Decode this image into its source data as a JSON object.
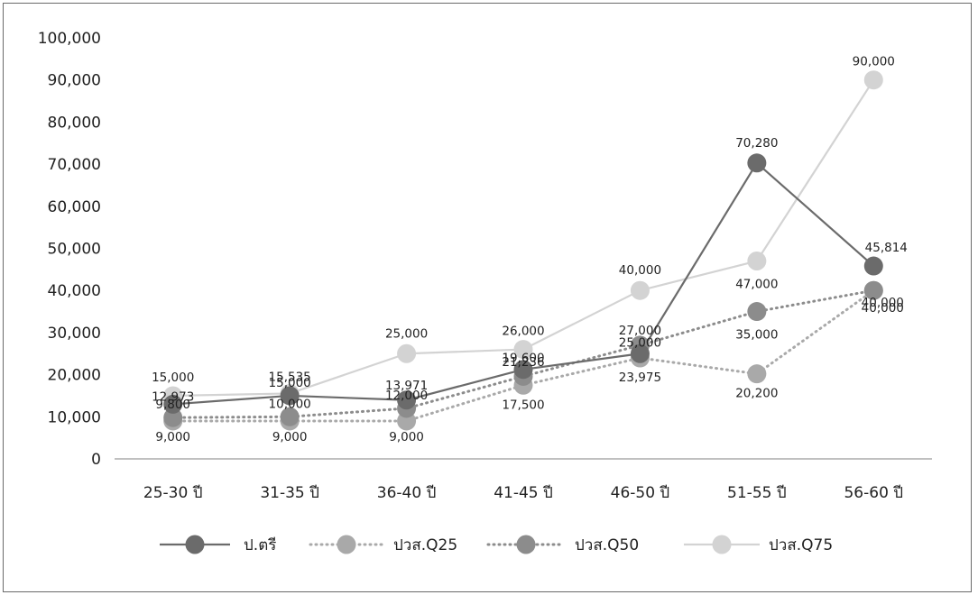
{
  "chart_data": {
    "type": "line",
    "categories": [
      "25-30 ปี",
      "31-35 ปี",
      "36-40 ปี",
      "41-45 ปี",
      "46-50 ปี",
      "51-55 ปี",
      "56-60 ปี"
    ],
    "ylim": [
      0,
      100000
    ],
    "yticks": [
      "0",
      "10,000",
      "20,000",
      "30,000",
      "40,000",
      "50,000",
      "60,000",
      "70,000",
      "80,000",
      "90,000",
      "100,000"
    ],
    "legend_position": "bottom",
    "grid": false,
    "series": [
      {
        "name": "ป.ตรี",
        "color": "#6b6b6b",
        "line": "solid",
        "values": [
          12973,
          15000,
          13971,
          21236,
          25000,
          70280,
          45814
        ],
        "labels": [
          "12,973",
          "15,000",
          "13,971",
          "21,236",
          "25,000",
          "70,280",
          "45,814"
        ]
      },
      {
        "name": "ปวส.Q25",
        "color": "#a9a9a9",
        "line": "dotted",
        "values": [
          9000,
          9000,
          9000,
          17500,
          23975,
          20200,
          40000
        ],
        "labels": [
          "9,000",
          "9,000",
          "9,000",
          "17,500",
          "23,975",
          "20,200",
          "40,000"
        ]
      },
      {
        "name": "ปวส.Q50",
        "color": "#8c8c8c",
        "line": "dotted",
        "values": [
          9800,
          10000,
          12000,
          19600,
          27000,
          35000,
          40000
        ],
        "labels": [
          "9,800",
          "10,000",
          "12,000",
          "19,600",
          "27,000",
          "35,000",
          "40,000"
        ]
      },
      {
        "name": "ปวส.Q75",
        "color": "#d3d3d3",
        "line": "solid",
        "values": [
          15000,
          15535,
          25000,
          26000,
          40000,
          47000,
          90000
        ],
        "labels": [
          "15,000",
          "15,535",
          "25,000",
          "26,000",
          "40,000",
          "47,000",
          "90,000"
        ]
      }
    ]
  }
}
